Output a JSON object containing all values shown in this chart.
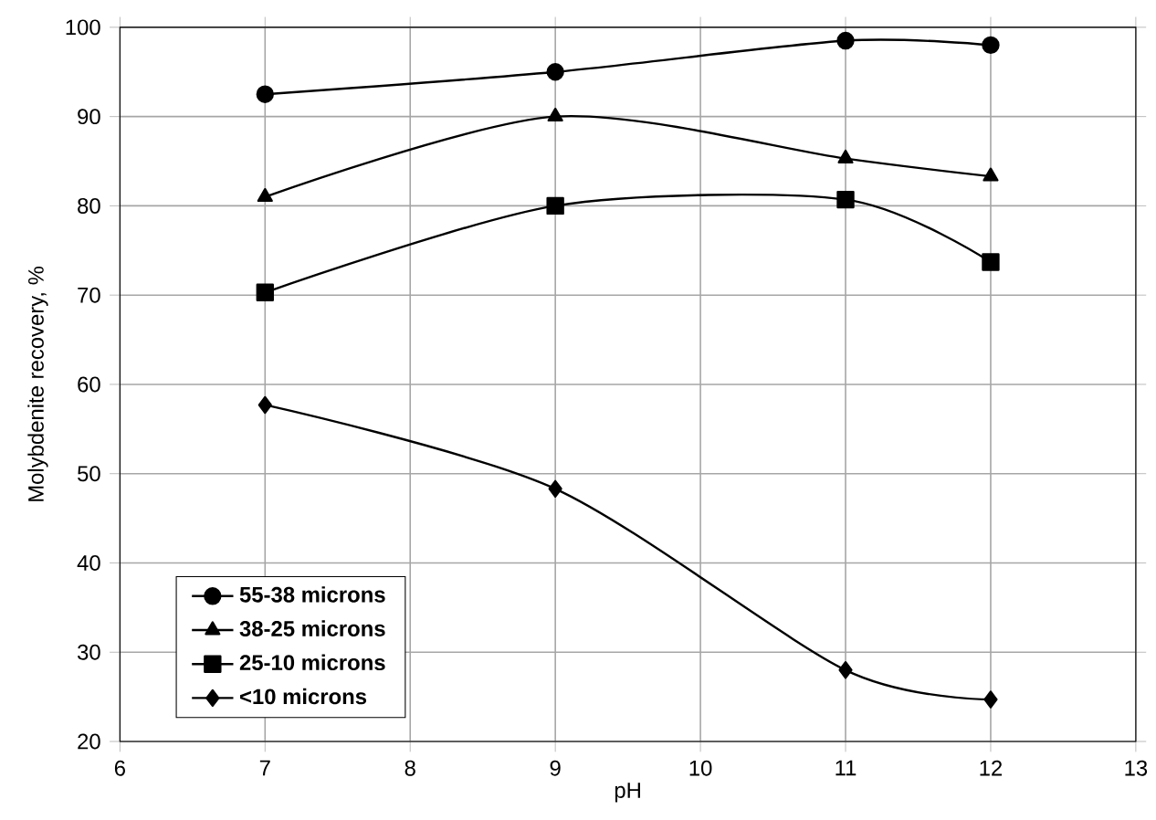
{
  "chart_data": {
    "type": "line",
    "xlabel": "pH",
    "ylabel": "Molybdenite recovery, %",
    "xlim": [
      6,
      13
    ],
    "xticks": [
      6,
      7,
      8,
      9,
      10,
      11,
      12,
      13
    ],
    "ylim": [
      20,
      100
    ],
    "yticks": [
      20,
      30,
      40,
      50,
      60,
      70,
      80,
      90,
      100
    ],
    "grid": true,
    "legend": "bottom left",
    "series": [
      {
        "name": "55-38 microns",
        "color": "#000000",
        "marker": "circle",
        "x": [
          7,
          9,
          11,
          12
        ],
        "values": [
          92.5,
          95,
          98.5,
          98
        ]
      },
      {
        "name": "38-25 microns",
        "color": "#000000",
        "marker": "triangle",
        "x": [
          7,
          9,
          11,
          12
        ],
        "values": [
          81,
          90,
          85.3,
          83.3
        ]
      },
      {
        "name": "25-10 microns",
        "color": "#000000",
        "marker": "square",
        "x": [
          7,
          9,
          11,
          12
        ],
        "values": [
          70.3,
          80,
          80.7,
          73.7
        ]
      },
      {
        "name": "<10 microns",
        "color": "#000000",
        "marker": "diamond",
        "x": [
          7,
          9,
          11,
          12
        ],
        "values": [
          57.7,
          48.3,
          28,
          24.7
        ]
      }
    ]
  }
}
